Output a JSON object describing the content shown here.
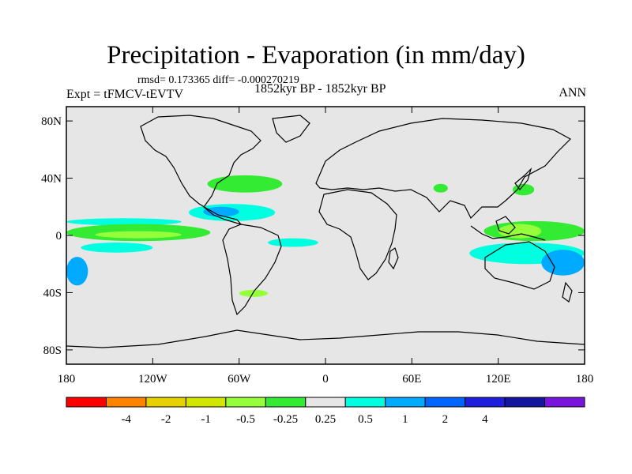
{
  "title": "Precipitation - Evaporation (in mm/day)",
  "stats": "rmsd= 0.173365 diff= -0.000270219",
  "experiment": "Expt = tFMCV-tEVTV",
  "period": "1852kyr BP - 1852kyr BP",
  "season": "ANN",
  "chart_data": {
    "type": "heatmap",
    "title": "Precipitation - Evaporation (in mm/day)",
    "x_ticks": [
      {
        "value": -180,
        "label": "180"
      },
      {
        "value": -120,
        "label": "120W"
      },
      {
        "value": -60,
        "label": "60W"
      },
      {
        "value": 0,
        "label": "0"
      },
      {
        "value": 60,
        "label": "60E"
      },
      {
        "value": 120,
        "label": "120E"
      },
      {
        "value": 180,
        "label": "180"
      }
    ],
    "y_ticks": [
      {
        "value": 80,
        "label": "80N"
      },
      {
        "value": 40,
        "label": "40N"
      },
      {
        "value": 0,
        "label": "0"
      },
      {
        "value": -40,
        "label": "40S"
      },
      {
        "value": -80,
        "label": "80S"
      }
    ],
    "xlim": [
      -180,
      180
    ],
    "ylim": [
      -90,
      90
    ],
    "background_color": "#e6e6e6",
    "colorbar": {
      "colors": [
        "#ff0000",
        "#ff8200",
        "#e6d200",
        "#d2e600",
        "#96ff3c",
        "#32eb32",
        "#e6e6e6",
        "#00ffe1",
        "#00aaff",
        "#0064ff",
        "#1e1edc",
        "#1414a0",
        "#7814dc"
      ],
      "labels": [
        "-4",
        "-2",
        "-1",
        "-0.5",
        "-0.25",
        "0.25",
        "0.5",
        "1",
        "2",
        "4"
      ]
    },
    "anomaly_regions": [
      {
        "name": "north-atlantic-storm-track",
        "color": "#32eb32",
        "lon": [
          -82,
          -30
        ],
        "lat": [
          30,
          42
        ]
      },
      {
        "name": "caribbean-band",
        "color": "#00ffe1",
        "lon": [
          -95,
          -35
        ],
        "lat": [
          10,
          22
        ]
      },
      {
        "name": "caribbean-core",
        "color": "#00aaff",
        "lon": [
          -85,
          -60
        ],
        "lat": [
          13,
          20
        ]
      },
      {
        "name": "east-pacific-cyan",
        "color": "#00ffe1",
        "lon": [
          -180,
          -100
        ],
        "lat": [
          7,
          12
        ]
      },
      {
        "name": "east-pacific-itcz",
        "color": "#32eb32",
        "lon": [
          -180,
          -80
        ],
        "lat": [
          -4,
          8
        ]
      },
      {
        "name": "east-pacific-itcz-core",
        "color": "#96ff3c",
        "lon": [
          -160,
          -100
        ],
        "lat": [
          -2,
          3
        ]
      },
      {
        "name": "south-pacific-cyan",
        "color": "#00ffe1",
        "lon": [
          -170,
          -120
        ],
        "lat": [
          -12,
          -5
        ]
      },
      {
        "name": "south-pacific-west",
        "color": "#00aaff",
        "lon": [
          -180,
          -165
        ],
        "lat": [
          -35,
          -15
        ]
      },
      {
        "name": "south-atlantic-green",
        "color": "#96ff3c",
        "lon": [
          -60,
          -40
        ],
        "lat": [
          -43,
          -38
        ]
      },
      {
        "name": "tropical-atlantic-cyan",
        "color": "#00ffe1",
        "lon": [
          -40,
          -5
        ],
        "lat": [
          -8,
          -2
        ]
      },
      {
        "name": "indonesia-green",
        "color": "#32eb32",
        "lon": [
          110,
          180
        ],
        "lat": [
          -4,
          10
        ]
      },
      {
        "name": "indonesia-core",
        "color": "#96ff3c",
        "lon": [
          120,
          150
        ],
        "lat": [
          -2,
          8
        ]
      },
      {
        "name": "west-pacific-cyan",
        "color": "#00ffe1",
        "lon": [
          100,
          180
        ],
        "lat": [
          -20,
          -5
        ]
      },
      {
        "name": "west-pacific-blue",
        "color": "#00aaff",
        "lon": [
          150,
          180
        ],
        "lat": [
          -28,
          -10
        ]
      },
      {
        "name": "japan-green",
        "color": "#32eb32",
        "lon": [
          130,
          145
        ],
        "lat": [
          28,
          36
        ]
      },
      {
        "name": "asia-green",
        "color": "#32eb32",
        "lon": [
          75,
          85
        ],
        "lat": [
          30,
          36
        ]
      }
    ]
  }
}
